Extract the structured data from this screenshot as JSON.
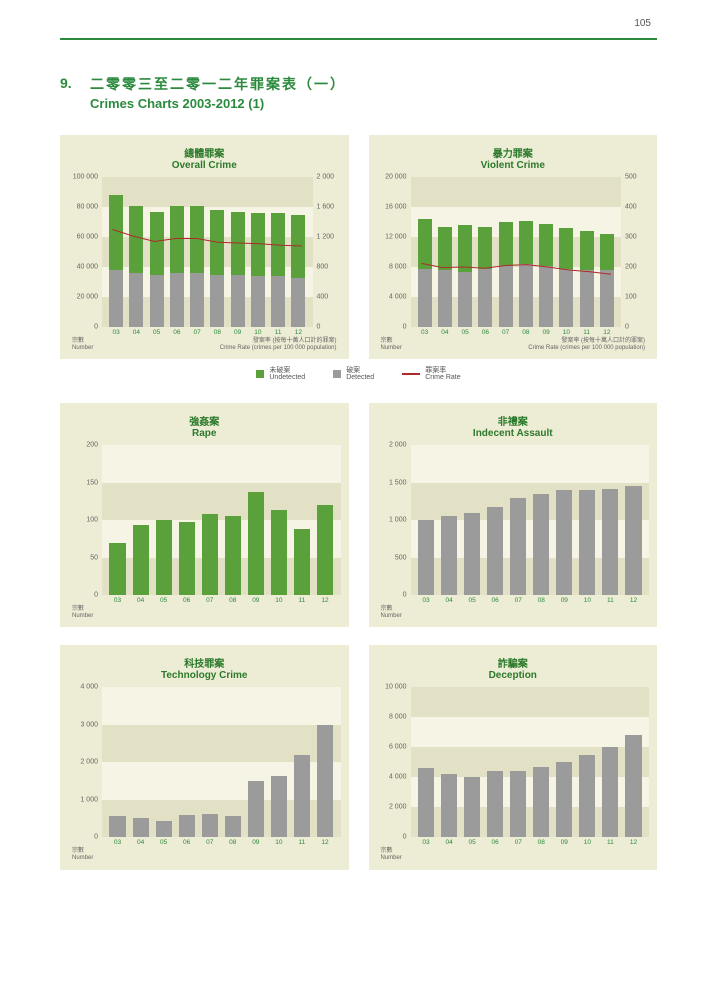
{
  "page_number": "105",
  "section": {
    "number": "9.",
    "title_zh": "二零零三至二零一二年罪案表（一）",
    "title_en": "Crimes Charts 2003-2012 (1)"
  },
  "colors": {
    "page_bg": "#ffffff",
    "card_bg": "#edecd4",
    "plot_bg": "#f6f4e4",
    "band_bg": "#e3e1c5",
    "bar_undetected": "#5aa13c",
    "bar_detected": "#9b9b9b",
    "line_rate": "#b02a2a",
    "accent": "#2b8a3e",
    "text_muted": "#666666"
  },
  "categories": [
    "03",
    "04",
    "05",
    "06",
    "07",
    "08",
    "09",
    "10",
    "11",
    "12"
  ],
  "axis_caption_number": {
    "zh": "宗數",
    "en": "Number"
  },
  "axis_caption_rate": {
    "zh": "發案率 (按每十萬人口計的罪案)",
    "en": "Crime Rate (crimes per 100 000 population)"
  },
  "legend": {
    "undetected": {
      "zh": "未破案",
      "en": "Undetected"
    },
    "detected": {
      "zh": "破案",
      "en": "Detected"
    },
    "rate": {
      "zh": "罪案率",
      "en": "Crime Rate"
    }
  },
  "charts": [
    {
      "id": "overall",
      "title_zh": "總體罪案",
      "title_en": "Overall Crime",
      "type": "stacked-bar-with-line",
      "ylim_left": [
        0,
        100000
      ],
      "yticks_left": [
        0,
        20000,
        40000,
        60000,
        80000,
        100000
      ],
      "ytick_labels_left": [
        "0",
        "20 000",
        "40 000",
        "60 000",
        "80 000",
        "100 000"
      ],
      "ylim_right": [
        0,
        2000
      ],
      "yticks_right": [
        0,
        400,
        800,
        1200,
        1600,
        2000
      ],
      "ytick_labels_right": [
        "0",
        "400",
        "800",
        "1 200",
        "1 600",
        "2 000"
      ],
      "detected": [
        38000,
        36000,
        35000,
        36000,
        36000,
        35000,
        35000,
        34000,
        34000,
        33000
      ],
      "undetected": [
        50000,
        45000,
        42000,
        45000,
        45000,
        43000,
        42000,
        42000,
        42000,
        42000
      ],
      "rate": [
        1300,
        1210,
        1140,
        1180,
        1180,
        1130,
        1120,
        1110,
        1090,
        1080
      ]
    },
    {
      "id": "violent",
      "title_zh": "暴力罪案",
      "title_en": "Violent Crime",
      "type": "stacked-bar-with-line",
      "ylim_left": [
        0,
        20000
      ],
      "yticks_left": [
        0,
        4000,
        8000,
        12000,
        16000,
        20000
      ],
      "ytick_labels_left": [
        "0",
        "4 000",
        "8 000",
        "12 000",
        "16 000",
        "20 000"
      ],
      "ylim_right": [
        0,
        500
      ],
      "yticks_right": [
        0,
        100,
        200,
        300,
        400,
        500
      ],
      "ytick_labels_right": [
        "0",
        "100",
        "200",
        "300",
        "400",
        "500"
      ],
      "detected": [
        7800,
        7600,
        7400,
        7800,
        8200,
        8400,
        8200,
        7800,
        7600,
        7600
      ],
      "undetected": [
        6600,
        5800,
        6200,
        5600,
        5800,
        5800,
        5600,
        5400,
        5200,
        4800
      ],
      "rate": [
        212,
        198,
        200,
        196,
        205,
        208,
        200,
        190,
        184,
        176
      ]
    },
    {
      "id": "rape",
      "title_zh": "強姦案",
      "title_en": "Rape",
      "type": "bar",
      "bar_color_key": "bar_undetected",
      "ylim_left": [
        0,
        200
      ],
      "yticks_left": [
        0,
        50,
        100,
        150,
        200
      ],
      "ytick_labels_left": [
        "0",
        "50",
        "100",
        "150",
        "200"
      ],
      "values": [
        70,
        93,
        100,
        98,
        108,
        106,
        138,
        113,
        88,
        120
      ]
    },
    {
      "id": "indecent",
      "title_zh": "非禮案",
      "title_en": "Indecent Assault",
      "type": "bar",
      "bar_color_key": "bar_detected",
      "ylim_left": [
        0,
        2000
      ],
      "yticks_left": [
        0,
        500,
        1000,
        1500,
        2000
      ],
      "ytick_labels_left": [
        "0",
        "500",
        "1 000",
        "1 500",
        "2 000"
      ],
      "values": [
        1000,
        1050,
        1100,
        1180,
        1300,
        1350,
        1400,
        1400,
        1420,
        1450
      ]
    },
    {
      "id": "tech",
      "title_zh": "科技罪案",
      "title_en": "Technology Crime",
      "type": "bar",
      "bar_color_key": "bar_detected",
      "ylim_left": [
        0,
        4000
      ],
      "yticks_left": [
        0,
        1000,
        2000,
        3000,
        4000
      ],
      "ytick_labels_left": [
        "0",
        "1 000",
        "2 000",
        "3 000",
        "4 000"
      ],
      "values": [
        580,
        520,
        450,
        600,
        620,
        580,
        1500,
        1650,
        2200,
        3000
      ]
    },
    {
      "id": "deception",
      "title_zh": "詐騙案",
      "title_en": "Deception",
      "type": "bar",
      "bar_color_key": "bar_detected",
      "ylim_left": [
        0,
        10000
      ],
      "yticks_left": [
        0,
        2000,
        4000,
        6000,
        8000,
        10000
      ],
      "ytick_labels_left": [
        "0",
        "2 000",
        "4 000",
        "6 000",
        "8 000",
        "10 000"
      ],
      "values": [
        4600,
        4200,
        4000,
        4400,
        4400,
        4700,
        5000,
        5500,
        6000,
        6800
      ]
    }
  ]
}
